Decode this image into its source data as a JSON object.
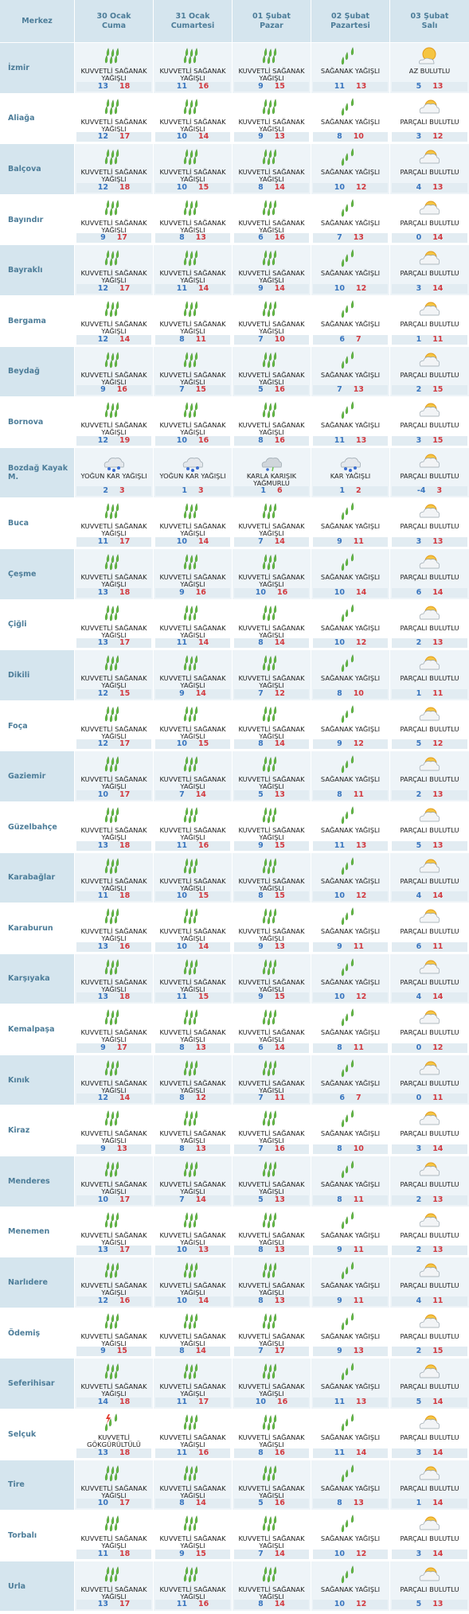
{
  "header": {
    "station_label": "Merkez",
    "days": [
      {
        "date": "30 Ocak",
        "weekday": "Cuma"
      },
      {
        "date": "31 Ocak",
        "weekday": "Cumartesi"
      },
      {
        "date": "01 Şubat",
        "weekday": "Pazar"
      },
      {
        "date": "02 Şubat",
        "weekday": "Pazartesi"
      },
      {
        "date": "03 Şubat",
        "weekday": "Salı"
      }
    ]
  },
  "rows": [
    {
      "name": "İzmir",
      "days": [
        {
          "condition": "KUVVETLİ SAĞANAK YAĞIŞLI",
          "min": 13,
          "max": 18
        },
        {
          "condition": "KUVVETLİ SAĞANAK YAĞIŞLI",
          "min": 11,
          "max": 16
        },
        {
          "condition": "KUVVETLİ SAĞANAK YAĞIŞLI",
          "min": 9,
          "max": 15
        },
        {
          "condition": "SAĞANAK YAĞIŞLI",
          "min": 11,
          "max": 13
        },
        {
          "condition": "AZ BULUTLU",
          "min": 5,
          "max": 13
        }
      ]
    },
    {
      "name": "Aliağa",
      "days": [
        {
          "condition": "KUVVETLİ SAĞANAK YAĞIŞLI",
          "min": 12,
          "max": 17
        },
        {
          "condition": "KUVVETLİ SAĞANAK YAĞIŞLI",
          "min": 10,
          "max": 14
        },
        {
          "condition": "KUVVETLİ SAĞANAK YAĞIŞLI",
          "min": 9,
          "max": 13
        },
        {
          "condition": "SAĞANAK YAĞIŞLI",
          "min": 8,
          "max": 10
        },
        {
          "condition": "PARÇALI BULUTLU",
          "min": 3,
          "max": 12
        }
      ]
    },
    {
      "name": "Balçova",
      "days": [
        {
          "condition": "KUVVETLİ SAĞANAK YAĞIŞLI",
          "min": 12,
          "max": 18
        },
        {
          "condition": "KUVVETLİ SAĞANAK YAĞIŞLI",
          "min": 10,
          "max": 15
        },
        {
          "condition": "KUVVETLİ SAĞANAK YAĞIŞLI",
          "min": 8,
          "max": 14
        },
        {
          "condition": "SAĞANAK YAĞIŞLI",
          "min": 10,
          "max": 12
        },
        {
          "condition": "PARÇALI BULUTLU",
          "min": 4,
          "max": 13
        }
      ]
    },
    {
      "name": "Bayındır",
      "days": [
        {
          "condition": "KUVVETLİ SAĞANAK YAĞIŞLI",
          "min": 9,
          "max": 17
        },
        {
          "condition": "KUVVETLİ SAĞANAK YAĞIŞLI",
          "min": 8,
          "max": 13
        },
        {
          "condition": "KUVVETLİ SAĞANAK YAĞIŞLI",
          "min": 6,
          "max": 16
        },
        {
          "condition": "SAĞANAK YAĞIŞLI",
          "min": 7,
          "max": 13
        },
        {
          "condition": "PARÇALI BULUTLU",
          "min": 0,
          "max": 14
        }
      ]
    },
    {
      "name": "Bayraklı",
      "days": [
        {
          "condition": "KUVVETLİ SAĞANAK YAĞIŞLI",
          "min": 12,
          "max": 17
        },
        {
          "condition": "KUVVETLİ SAĞANAK YAĞIŞLI",
          "min": 11,
          "max": 14
        },
        {
          "condition": "KUVVETLİ SAĞANAK YAĞIŞLI",
          "min": 9,
          "max": 14
        },
        {
          "condition": "SAĞANAK YAĞIŞLI",
          "min": 10,
          "max": 12
        },
        {
          "condition": "PARÇALI BULUTLU",
          "min": 3,
          "max": 14
        }
      ]
    },
    {
      "name": "Bergama",
      "days": [
        {
          "condition": "KUVVETLİ SAĞANAK YAĞIŞLI",
          "min": 12,
          "max": 14
        },
        {
          "condition": "KUVVETLİ SAĞANAK YAĞIŞLI",
          "min": 8,
          "max": 11
        },
        {
          "condition": "KUVVETLİ SAĞANAK YAĞIŞLI",
          "min": 7,
          "max": 10
        },
        {
          "condition": "SAĞANAK YAĞIŞLI",
          "min": 6,
          "max": 7
        },
        {
          "condition": "PARÇALI BULUTLU",
          "min": 1,
          "max": 11
        }
      ]
    },
    {
      "name": "Beydağ",
      "days": [
        {
          "condition": "KUVVETLİ SAĞANAK YAĞIŞLI",
          "min": 9,
          "max": 16
        },
        {
          "condition": "KUVVETLİ SAĞANAK YAĞIŞLI",
          "min": 7,
          "max": 15
        },
        {
          "condition": "KUVVETLİ SAĞANAK YAĞIŞLI",
          "min": 5,
          "max": 16
        },
        {
          "condition": "SAĞANAK YAĞIŞLI",
          "min": 7,
          "max": 13
        },
        {
          "condition": "PARÇALI BULUTLU",
          "min": 2,
          "max": 15
        }
      ]
    },
    {
      "name": "Bornova",
      "days": [
        {
          "condition": "KUVVETLİ SAĞANAK YAĞIŞLI",
          "min": 12,
          "max": 19
        },
        {
          "condition": "KUVVETLİ SAĞANAK YAĞIŞLI",
          "min": 10,
          "max": 16
        },
        {
          "condition": "KUVVETLİ SAĞANAK YAĞIŞLI",
          "min": 8,
          "max": 16
        },
        {
          "condition": "SAĞANAK YAĞIŞLI",
          "min": 11,
          "max": 13
        },
        {
          "condition": "PARÇALI BULUTLU",
          "min": 3,
          "max": 15
        }
      ]
    },
    {
      "name": "Bozdağ Kayak M.",
      "days": [
        {
          "condition": "YOĞUN KAR YAĞIŞLI",
          "min": 2,
          "max": 3
        },
        {
          "condition": "YOĞUN KAR YAĞIŞLI",
          "min": 1,
          "max": 3
        },
        {
          "condition": "KARLA KARIŞIK YAĞMURLU",
          "min": 1,
          "max": 6
        },
        {
          "condition": "KAR YAĞIŞLI",
          "min": 1,
          "max": 2
        },
        {
          "condition": "PARÇALI BULUTLU",
          "min": -4,
          "max": 3
        }
      ]
    },
    {
      "name": "Buca",
      "days": [
        {
          "condition": "KUVVETLİ SAĞANAK YAĞIŞLI",
          "min": 11,
          "max": 17
        },
        {
          "condition": "KUVVETLİ SAĞANAK YAĞIŞLI",
          "min": 10,
          "max": 14
        },
        {
          "condition": "KUVVETLİ SAĞANAK YAĞIŞLI",
          "min": 7,
          "max": 14
        },
        {
          "condition": "SAĞANAK YAĞIŞLI",
          "min": 9,
          "max": 11
        },
        {
          "condition": "PARÇALI BULUTLU",
          "min": 3,
          "max": 13
        }
      ]
    },
    {
      "name": "Çeşme",
      "days": [
        {
          "condition": "KUVVETLİ SAĞANAK YAĞIŞLI",
          "min": 13,
          "max": 18
        },
        {
          "condition": "KUVVETLİ SAĞANAK YAĞIŞLI",
          "min": 9,
          "max": 16
        },
        {
          "condition": "KUVVETLİ SAĞANAK YAĞIŞLI",
          "min": 10,
          "max": 16
        },
        {
          "condition": "SAĞANAK YAĞIŞLI",
          "min": 10,
          "max": 14
        },
        {
          "condition": "PARÇALI BULUTLU",
          "min": 6,
          "max": 14
        }
      ]
    },
    {
      "name": "Çiğli",
      "days": [
        {
          "condition": "KUVVETLİ SAĞANAK YAĞIŞLI",
          "min": 13,
          "max": 17
        },
        {
          "condition": "KUVVETLİ SAĞANAK YAĞIŞLI",
          "min": 11,
          "max": 14
        },
        {
          "condition": "KUVVETLİ SAĞANAK YAĞIŞLI",
          "min": 8,
          "max": 14
        },
        {
          "condition": "SAĞANAK YAĞIŞLI",
          "min": 10,
          "max": 12
        },
        {
          "condition": "PARÇALI BULUTLU",
          "min": 2,
          "max": 13
        }
      ]
    },
    {
      "name": "Dikili",
      "days": [
        {
          "condition": "KUVVETLİ SAĞANAK YAĞIŞLI",
          "min": 12,
          "max": 15
        },
        {
          "condition": "KUVVETLİ SAĞANAK YAĞIŞLI",
          "min": 9,
          "max": 14
        },
        {
          "condition": "KUVVETLİ SAĞANAK YAĞIŞLI",
          "min": 7,
          "max": 12
        },
        {
          "condition": "SAĞANAK YAĞIŞLI",
          "min": 8,
          "max": 10
        },
        {
          "condition": "PARÇALI BULUTLU",
          "min": 1,
          "max": 11
        }
      ]
    },
    {
      "name": "Foça",
      "days": [
        {
          "condition": "KUVVETLİ SAĞANAK YAĞIŞLI",
          "min": 12,
          "max": 17
        },
        {
          "condition": "KUVVETLİ SAĞANAK YAĞIŞLI",
          "min": 10,
          "max": 15
        },
        {
          "condition": "KUVVETLİ SAĞANAK YAĞIŞLI",
          "min": 8,
          "max": 14
        },
        {
          "condition": "SAĞANAK YAĞIŞLI",
          "min": 9,
          "max": 12
        },
        {
          "condition": "PARÇALI BULUTLU",
          "min": 5,
          "max": 12
        }
      ]
    },
    {
      "name": "Gaziemir",
      "days": [
        {
          "condition": "KUVVETLİ SAĞANAK YAĞIŞLI",
          "min": 10,
          "max": 17
        },
        {
          "condition": "KUVVETLİ SAĞANAK YAĞIŞLI",
          "min": 7,
          "max": 14
        },
        {
          "condition": "KUVVETLİ SAĞANAK YAĞIŞLI",
          "min": 5,
          "max": 13
        },
        {
          "condition": "SAĞANAK YAĞIŞLI",
          "min": 8,
          "max": 11
        },
        {
          "condition": "PARÇALI BULUTLU",
          "min": 2,
          "max": 13
        }
      ]
    },
    {
      "name": "Güzelbahçe",
      "days": [
        {
          "condition": "KUVVETLİ SAĞANAK YAĞIŞLI",
          "min": 13,
          "max": 18
        },
        {
          "condition": "KUVVETLİ SAĞANAK YAĞIŞLI",
          "min": 11,
          "max": 16
        },
        {
          "condition": "KUVVETLİ SAĞANAK YAĞIŞLI",
          "min": 9,
          "max": 15
        },
        {
          "condition": "SAĞANAK YAĞIŞLI",
          "min": 11,
          "max": 13
        },
        {
          "condition": "PARÇALI BULUTLU",
          "min": 5,
          "max": 13
        }
      ]
    },
    {
      "name": "Karabağlar",
      "days": [
        {
          "condition": "KUVVETLİ SAĞANAK YAĞIŞLI",
          "min": 11,
          "max": 18
        },
        {
          "condition": "KUVVETLİ SAĞANAK YAĞIŞLI",
          "min": 10,
          "max": 15
        },
        {
          "condition": "KUVVETLİ SAĞANAK YAĞIŞLI",
          "min": 8,
          "max": 15
        },
        {
          "condition": "SAĞANAK YAĞIŞLI",
          "min": 10,
          "max": 12
        },
        {
          "condition": "PARÇALI BULUTLU",
          "min": 4,
          "max": 14
        }
      ]
    },
    {
      "name": "Karaburun",
      "days": [
        {
          "condition": "KUVVETLİ SAĞANAK YAĞIŞLI",
          "min": 13,
          "max": 16
        },
        {
          "condition": "KUVVETLİ SAĞANAK YAĞIŞLI",
          "min": 10,
          "max": 14
        },
        {
          "condition": "KUVVETLİ SAĞANAK YAĞIŞLI",
          "min": 9,
          "max": 13
        },
        {
          "condition": "SAĞANAK YAĞIŞLI",
          "min": 9,
          "max": 11
        },
        {
          "condition": "PARÇALI BULUTLU",
          "min": 6,
          "max": 11
        }
      ]
    },
    {
      "name": "Karşıyaka",
      "days": [
        {
          "condition": "KUVVETLİ SAĞANAK YAĞIŞLI",
          "min": 13,
          "max": 18
        },
        {
          "condition": "KUVVETLİ SAĞANAK YAĞIŞLI",
          "min": 11,
          "max": 15
        },
        {
          "condition": "KUVVETLİ SAĞANAK YAĞIŞLI",
          "min": 9,
          "max": 15
        },
        {
          "condition": "SAĞANAK YAĞIŞLI",
          "min": 10,
          "max": 12
        },
        {
          "condition": "PARÇALI BULUTLU",
          "min": 4,
          "max": 14
        }
      ]
    },
    {
      "name": "Kemalpaşa",
      "days": [
        {
          "condition": "KUVVETLİ SAĞANAK YAĞIŞLI",
          "min": 9,
          "max": 17
        },
        {
          "condition": "KUVVETLİ SAĞANAK YAĞIŞLI",
          "min": 8,
          "max": 13
        },
        {
          "condition": "KUVVETLİ SAĞANAK YAĞIŞLI",
          "min": 6,
          "max": 14
        },
        {
          "condition": "SAĞANAK YAĞIŞLI",
          "min": 8,
          "max": 11
        },
        {
          "condition": "PARÇALI BULUTLU",
          "min": 0,
          "max": 12
        }
      ]
    },
    {
      "name": "Kınık",
      "days": [
        {
          "condition": "KUVVETLİ SAĞANAK YAĞIŞLI",
          "min": 12,
          "max": 14
        },
        {
          "condition": "KUVVETLİ SAĞANAK YAĞIŞLI",
          "min": 8,
          "max": 12
        },
        {
          "condition": "KUVVETLİ SAĞANAK YAĞIŞLI",
          "min": 7,
          "max": 11
        },
        {
          "condition": "SAĞANAK YAĞIŞLI",
          "min": 6,
          "max": 7
        },
        {
          "condition": "PARÇALI BULUTLU",
          "min": 0,
          "max": 11
        }
      ]
    },
    {
      "name": "Kiraz",
      "days": [
        {
          "condition": "KUVVETLİ SAĞANAK YAĞIŞLI",
          "min": 9,
          "max": 13
        },
        {
          "condition": "KUVVETLİ SAĞANAK YAĞIŞLI",
          "min": 8,
          "max": 13
        },
        {
          "condition": "KUVVETLİ SAĞANAK YAĞIŞLI",
          "min": 7,
          "max": 16
        },
        {
          "condition": "SAĞANAK YAĞIŞLI",
          "min": 8,
          "max": 10
        },
        {
          "condition": "PARÇALI BULUTLU",
          "min": 3,
          "max": 14
        }
      ]
    },
    {
      "name": "Menderes",
      "days": [
        {
          "condition": "KUVVETLİ SAĞANAK YAĞIŞLI",
          "min": 10,
          "max": 17
        },
        {
          "condition": "KUVVETLİ SAĞANAK YAĞIŞLI",
          "min": 7,
          "max": 14
        },
        {
          "condition": "KUVVETLİ SAĞANAK YAĞIŞLI",
          "min": 5,
          "max": 13
        },
        {
          "condition": "SAĞANAK YAĞIŞLI",
          "min": 8,
          "max": 11
        },
        {
          "condition": "PARÇALI BULUTLU",
          "min": 2,
          "max": 13
        }
      ]
    },
    {
      "name": "Menemen",
      "days": [
        {
          "condition": "KUVVETLİ SAĞANAK YAĞIŞLI",
          "min": 13,
          "max": 17
        },
        {
          "condition": "KUVVETLİ SAĞANAK YAĞIŞLI",
          "min": 10,
          "max": 13
        },
        {
          "condition": "KUVVETLİ SAĞANAK YAĞIŞLI",
          "min": 8,
          "max": 13
        },
        {
          "condition": "SAĞANAK YAĞIŞLI",
          "min": 9,
          "max": 11
        },
        {
          "condition": "PARÇALI BULUTLU",
          "min": 2,
          "max": 13
        }
      ]
    },
    {
      "name": "Narlıdere",
      "days": [
        {
          "condition": "KUVVETLİ SAĞANAK YAĞIŞLI",
          "min": 12,
          "max": 16
        },
        {
          "condition": "KUVVETLİ SAĞANAK YAĞIŞLI",
          "min": 10,
          "max": 14
        },
        {
          "condition": "KUVVETLİ SAĞANAK YAĞIŞLI",
          "min": 8,
          "max": 13
        },
        {
          "condition": "SAĞANAK YAĞIŞLI",
          "min": 9,
          "max": 11
        },
        {
          "condition": "PARÇALI BULUTLU",
          "min": 4,
          "max": 11
        }
      ]
    },
    {
      "name": "Ödemiş",
      "days": [
        {
          "condition": "KUVVETLİ SAĞANAK YAĞIŞLI",
          "min": 9,
          "max": 15
        },
        {
          "condition": "KUVVETLİ SAĞANAK YAĞIŞLI",
          "min": 8,
          "max": 14
        },
        {
          "condition": "KUVVETLİ SAĞANAK YAĞIŞLI",
          "min": 7,
          "max": 17
        },
        {
          "condition": "SAĞANAK YAĞIŞLI",
          "min": 9,
          "max": 13
        },
        {
          "condition": "PARÇALI BULUTLU",
          "min": 2,
          "max": 15
        }
      ]
    },
    {
      "name": "Seferihisar",
      "days": [
        {
          "condition": "KUVVETLİ SAĞANAK YAĞIŞLI",
          "min": 14,
          "max": 18
        },
        {
          "condition": "KUVVETLİ SAĞANAK YAĞIŞLI",
          "min": 11,
          "max": 17
        },
        {
          "condition": "KUVVETLİ SAĞANAK YAĞIŞLI",
          "min": 10,
          "max": 16
        },
        {
          "condition": "SAĞANAK YAĞIŞLI",
          "min": 11,
          "max": 13
        },
        {
          "condition": "PARÇALI BULUTLU",
          "min": 5,
          "max": 14
        }
      ]
    },
    {
      "name": "Selçuk",
      "days": [
        {
          "condition": "KUVVETLİ GÖKGÜRÜLTÜLÜ SAĞANAK YAĞIŞLI",
          "min": 13,
          "max": 18
        },
        {
          "condition": "KUVVETLİ SAĞANAK YAĞIŞLI",
          "min": 11,
          "max": 16
        },
        {
          "condition": "KUVVETLİ SAĞANAK YAĞIŞLI",
          "min": 8,
          "max": 16
        },
        {
          "condition": "SAĞANAK YAĞIŞLI",
          "min": 11,
          "max": 14
        },
        {
          "condition": "PARÇALI BULUTLU",
          "min": 3,
          "max": 14
        }
      ]
    },
    {
      "name": "Tire",
      "days": [
        {
          "condition": "KUVVETLİ SAĞANAK YAĞIŞLI",
          "min": 10,
          "max": 17
        },
        {
          "condition": "KUVVETLİ SAĞANAK YAĞIŞLI",
          "min": 8,
          "max": 14
        },
        {
          "condition": "KUVVETLİ SAĞANAK YAĞIŞLI",
          "min": 5,
          "max": 16
        },
        {
          "condition": "SAĞANAK YAĞIŞLI",
          "min": 8,
          "max": 13
        },
        {
          "condition": "PARÇALI BULUTLU",
          "min": 1,
          "max": 14
        }
      ]
    },
    {
      "name": "Torbalı",
      "days": [
        {
          "condition": "KUVVETLİ SAĞANAK YAĞIŞLI",
          "min": 11,
          "max": 18
        },
        {
          "condition": "KUVVETLİ SAĞANAK YAĞIŞLI",
          "min": 9,
          "max": 15
        },
        {
          "condition": "KUVVETLİ SAĞANAK YAĞIŞLI",
          "min": 7,
          "max": 14
        },
        {
          "condition": "SAĞANAK YAĞIŞLI",
          "min": 10,
          "max": 12
        },
        {
          "condition": "PARÇALI BULUTLU",
          "min": 3,
          "max": 14
        }
      ]
    },
    {
      "name": "Urla",
      "days": [
        {
          "condition": "KUVVETLİ SAĞANAK YAĞIŞLI",
          "min": 13,
          "max": 17
        },
        {
          "condition": "KUVVETLİ SAĞANAK YAĞIŞLI",
          "min": 11,
          "max": 16
        },
        {
          "condition": "KUVVETLİ SAĞANAK YAĞIŞLI",
          "min": 8,
          "max": 14
        },
        {
          "condition": "SAĞANAK YAĞIŞLI",
          "min": 10,
          "max": 12
        },
        {
          "condition": "PARÇALI BULUTLU",
          "min": 5,
          "max": 13
        }
      ]
    }
  ]
}
